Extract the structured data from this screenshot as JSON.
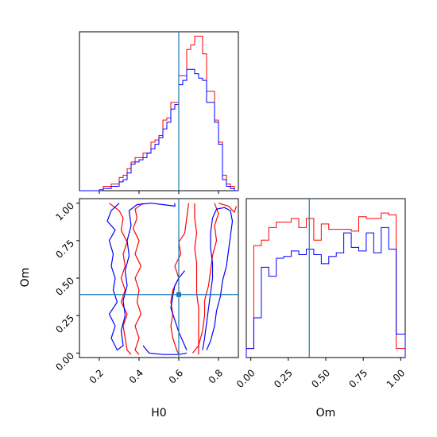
{
  "chart_data": [
    {
      "panel": "histogram-H0",
      "type": "histogram",
      "bin_edges": [
        0.1,
        0.12,
        0.14,
        0.16,
        0.18,
        0.2,
        0.22,
        0.24,
        0.26,
        0.28,
        0.3,
        0.32,
        0.34,
        0.36,
        0.38,
        0.4,
        0.42,
        0.44,
        0.46,
        0.48,
        0.5,
        0.52,
        0.54,
        0.56,
        0.58,
        0.6,
        0.62,
        0.64,
        0.66,
        0.68,
        0.7,
        0.72,
        0.74,
        0.76,
        0.78,
        0.8,
        0.82,
        0.84,
        0.86,
        0.88,
        0.9
      ],
      "series": [
        {
          "color": "#ff0000",
          "counts": [
            0,
            0,
            0,
            0,
            0,
            0.5,
            2,
            2,
            3,
            3,
            6,
            7,
            10,
            13,
            15,
            15,
            17,
            17,
            22,
            23,
            25,
            32,
            33,
            40,
            40,
            52,
            52,
            64,
            66,
            70,
            70,
            62,
            45,
            45,
            32,
            22,
            7,
            3,
            2,
            0
          ]
        },
        {
          "color": "#0000ff",
          "counts": [
            0,
            0,
            0,
            0,
            0,
            0,
            1,
            1,
            2,
            2,
            4,
            5,
            8,
            12,
            13,
            14,
            15,
            17,
            19,
            21,
            24,
            28,
            31,
            37,
            39,
            48,
            50,
            55,
            55,
            53,
            51,
            50,
            40,
            40,
            31,
            21,
            5,
            2,
            1,
            0
          ]
        }
      ],
      "truth_line": 0.6,
      "xlim": [
        0.1,
        0.9
      ]
    },
    {
      "panel": "contour-H0-Om",
      "type": "contour",
      "xlabel": "H0",
      "ylabel": "Om",
      "xlim": [
        0.1,
        0.9
      ],
      "ylim": [
        -0.03,
        1.03
      ],
      "x_ticks": [
        "0.2",
        "0.4",
        "0.6",
        "0.8"
      ],
      "y_ticks": [
        "0.00",
        "0.25",
        "0.50",
        "0.75",
        "1.00"
      ],
      "truth_point": [
        0.6,
        0.39
      ],
      "series": [
        {
          "color": "#ff0000",
          "contours": [
            [
              [
                0.25,
                1.0
              ],
              [
                0.3,
                0.95
              ],
              [
                0.32,
                0.9
              ],
              [
                0.31,
                0.82
              ],
              [
                0.34,
                0.74
              ],
              [
                0.32,
                0.66
              ],
              [
                0.33,
                0.58
              ],
              [
                0.31,
                0.5
              ],
              [
                0.33,
                0.42
              ],
              [
                0.31,
                0.34
              ],
              [
                0.34,
                0.26
              ],
              [
                0.32,
                0.18
              ],
              [
                0.33,
                0.1
              ],
              [
                0.34,
                0.02
              ],
              [
                0.36,
                -0.01
              ]
            ],
            [
              [
                0.42,
                1.0
              ],
              [
                0.38,
                0.96
              ],
              [
                0.39,
                0.9
              ],
              [
                0.37,
                0.83
              ],
              [
                0.4,
                0.75
              ],
              [
                0.38,
                0.66
              ],
              [
                0.41,
                0.58
              ],
              [
                0.38,
                0.5
              ],
              [
                0.4,
                0.42
              ],
              [
                0.39,
                0.34
              ],
              [
                0.41,
                0.26
              ],
              [
                0.38,
                0.18
              ],
              [
                0.4,
                0.1
              ],
              [
                0.38,
                0.02
              ],
              [
                0.4,
                -0.01
              ]
            ],
            [
              [
                0.65,
                1.0
              ],
              [
                0.64,
                0.9
              ],
              [
                0.63,
                0.8
              ],
              [
                0.6,
                0.74
              ],
              [
                0.61,
                0.66
              ],
              [
                0.58,
                0.58
              ],
              [
                0.6,
                0.5
              ],
              [
                0.57,
                0.42
              ],
              [
                0.56,
                0.34
              ],
              [
                0.57,
                0.26
              ],
              [
                0.56,
                0.18
              ],
              [
                0.57,
                0.1
              ],
              [
                0.59,
                0.02
              ],
              [
                0.6,
                -0.01
              ]
            ],
            [
              [
                0.68,
                1.0
              ],
              [
                0.68,
                0.9
              ],
              [
                0.69,
                0.8
              ],
              [
                0.68,
                0.7
              ],
              [
                0.69,
                0.6
              ],
              [
                0.69,
                0.5
              ],
              [
                0.69,
                0.4
              ],
              [
                0.7,
                0.3
              ],
              [
                0.7,
                0.2
              ],
              [
                0.7,
                0.1
              ],
              [
                0.7,
                -0.01
              ]
            ],
            [
              [
                0.78,
                1.0
              ],
              [
                0.8,
                0.93
              ],
              [
                0.78,
                0.85
              ],
              [
                0.79,
                0.75
              ],
              [
                0.77,
                0.65
              ],
              [
                0.76,
                0.55
              ],
              [
                0.75,
                0.45
              ],
              [
                0.73,
                0.35
              ],
              [
                0.73,
                0.25
              ],
              [
                0.72,
                0.15
              ],
              [
                0.7,
                0.05
              ],
              [
                0.67,
                0.0
              ]
            ],
            [
              [
                0.8,
                1.0
              ],
              [
                0.85,
                0.98
              ],
              [
                0.88,
                0.94
              ],
              [
                0.89,
                0.98
              ]
            ]
          ]
        },
        {
          "color": "#0000ff",
          "contours": [
            [
              [
                0.3,
                1.0
              ],
              [
                0.26,
                0.95
              ],
              [
                0.24,
                0.88
              ],
              [
                0.28,
                0.82
              ],
              [
                0.25,
                0.75
              ],
              [
                0.27,
                0.66
              ],
              [
                0.26,
                0.58
              ],
              [
                0.28,
                0.5
              ],
              [
                0.27,
                0.42
              ],
              [
                0.29,
                0.34
              ],
              [
                0.25,
                0.26
              ],
              [
                0.28,
                0.18
              ],
              [
                0.26,
                0.1
              ],
              [
                0.29,
                0.02
              ],
              [
                0.32,
                0.05
              ],
              [
                0.31,
                0.15
              ],
              [
                0.33,
                0.25
              ],
              [
                0.32,
                0.35
              ],
              [
                0.34,
                0.45
              ],
              [
                0.33,
                0.55
              ],
              [
                0.35,
                0.65
              ],
              [
                0.34,
                0.75
              ],
              [
                0.36,
                0.85
              ],
              [
                0.35,
                0.95
              ],
              [
                0.39,
                0.99
              ],
              [
                0.46,
                1.0
              ],
              [
                0.52,
                0.99
              ],
              [
                0.58,
                0.98
              ],
              [
                0.58,
                1.0
              ]
            ],
            [
              [
                0.42,
                0.05
              ],
              [
                0.45,
                0.0
              ],
              [
                0.52,
                -0.01
              ],
              [
                0.6,
                -0.01
              ],
              [
                0.64,
                0.0
              ]
            ],
            [
              [
                0.63,
                0.55
              ],
              [
                0.6,
                0.5
              ],
              [
                0.58,
                0.45
              ],
              [
                0.57,
                0.38
              ],
              [
                0.56,
                0.3
              ],
              [
                0.58,
                0.22
              ],
              [
                0.6,
                0.14
              ],
              [
                0.62,
                0.08
              ],
              [
                0.64,
                0.02
              ]
            ],
            [
              [
                0.72,
                0.02
              ],
              [
                0.73,
                0.1
              ],
              [
                0.74,
                0.2
              ],
              [
                0.75,
                0.3
              ],
              [
                0.76,
                0.4
              ],
              [
                0.77,
                0.5
              ],
              [
                0.77,
                0.6
              ],
              [
                0.76,
                0.7
              ],
              [
                0.76,
                0.8
              ],
              [
                0.77,
                0.9
              ],
              [
                0.79,
                0.96
              ],
              [
                0.83,
                0.97
              ],
              [
                0.86,
                0.95
              ],
              [
                0.87,
                0.88
              ],
              [
                0.86,
                0.78
              ],
              [
                0.85,
                0.68
              ],
              [
                0.84,
                0.58
              ],
              [
                0.82,
                0.48
              ],
              [
                0.81,
                0.38
              ],
              [
                0.79,
                0.28
              ],
              [
                0.78,
                0.18
              ],
              [
                0.76,
                0.08
              ],
              [
                0.74,
                0.02
              ]
            ]
          ]
        }
      ]
    },
    {
      "panel": "histogram-Om",
      "type": "histogram",
      "xlabel": "Om",
      "xlim": [
        -0.03,
        1.03
      ],
      "x_ticks": [
        "0.00",
        "0.25",
        "0.50",
        "0.75",
        "1.00"
      ],
      "bin_edges": [
        -0.03,
        0.02,
        0.07,
        0.12,
        0.17,
        0.22,
        0.27,
        0.32,
        0.37,
        0.42,
        0.47,
        0.52,
        0.57,
        0.62,
        0.67,
        0.72,
        0.77,
        0.82,
        0.87,
        0.92,
        0.97,
        1.03
      ],
      "truth_line": 0.39,
      "series": [
        {
          "color": "#ff0000",
          "counts": [
            5,
            62,
            65,
            72,
            75,
            75,
            77,
            72,
            77,
            65,
            74,
            71,
            71,
            71,
            70,
            78,
            77,
            77,
            80,
            79,
            5
          ]
        },
        {
          "color": "#0000ff",
          "counts": [
            5,
            22,
            50,
            45,
            55,
            56,
            59,
            57,
            60,
            57,
            52,
            56,
            58,
            69,
            61,
            59,
            69,
            58,
            72,
            60,
            13
          ]
        }
      ]
    }
  ]
}
